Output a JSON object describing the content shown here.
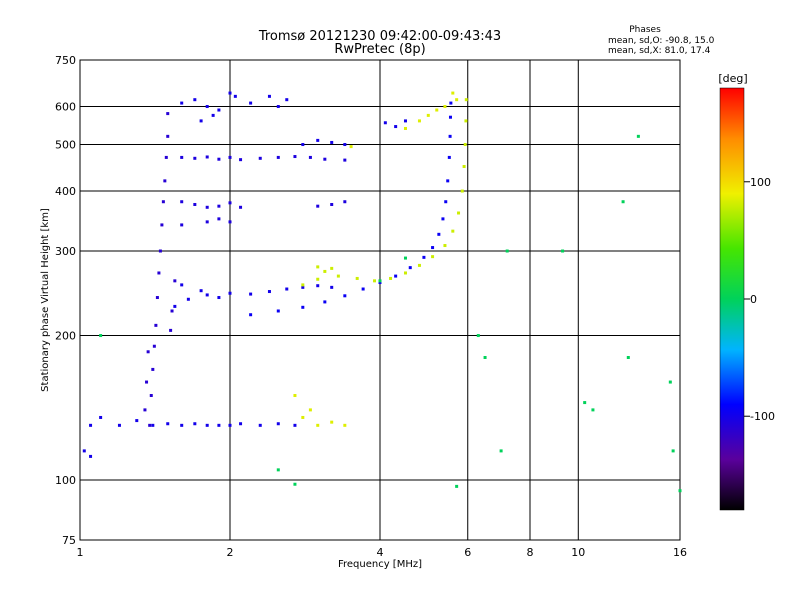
{
  "chart_data": {
    "type": "scatter",
    "title": "Tromsø 20121230 09:42:00-09:43:43",
    "subtitle": "RwPretec (8p)",
    "xlabel": "Frequency [MHz]",
    "ylabel": "Stationary phase Virtual Height [km]",
    "x_scale": "log",
    "y_scale": "log",
    "xlim": [
      1,
      16
    ],
    "ylim": [
      75,
      750
    ],
    "x_ticks": [
      1,
      2,
      4,
      6,
      8,
      10,
      16
    ],
    "x_tick_labels": [
      "1",
      "2",
      "4",
      "6",
      "8",
      "10",
      "16"
    ],
    "y_ticks": [
      75,
      100,
      200,
      300,
      400,
      500,
      600,
      750
    ],
    "y_tick_labels": [
      "75",
      "100",
      "200",
      "300",
      "400",
      "500",
      "600",
      "750"
    ],
    "grid": true,
    "annotation": {
      "title": "Phases",
      "line_o": "mean, sd,O: -90.8, 15.0",
      "line_x": "mean, sd,X:  81.0, 17.4"
    },
    "colorbar": {
      "label": "[deg]",
      "range": [
        -180,
        180
      ],
      "ticks": [
        100,
        0,
        -100
      ],
      "tick_labels": [
        "100",
        "0",
        "-100"
      ]
    },
    "series": [
      {
        "key": "o_trace_main",
        "phase": -95,
        "points": [
          [
            2.2,
            221
          ],
          [
            2.5,
            225
          ],
          [
            2.8,
            229
          ],
          [
            3.1,
            235
          ],
          [
            3.4,
            242
          ],
          [
            3.7,
            250
          ],
          [
            4.0,
            258
          ],
          [
            4.3,
            266
          ],
          [
            4.6,
            277
          ],
          [
            4.9,
            291
          ],
          [
            5.1,
            305
          ],
          [
            5.25,
            325
          ],
          [
            5.35,
            350
          ],
          [
            5.42,
            380
          ],
          [
            5.47,
            420
          ],
          [
            5.51,
            470
          ],
          [
            5.53,
            520
          ],
          [
            5.54,
            570
          ],
          [
            5.55,
            610
          ]
        ]
      },
      {
        "key": "o_trace_spread",
        "phase": -100,
        "points": [
          [
            1.55,
            230
          ],
          [
            1.65,
            238
          ],
          [
            1.8,
            243
          ],
          [
            2.0,
            245
          ],
          [
            2.2,
            244
          ],
          [
            2.4,
            247
          ],
          [
            2.6,
            250
          ],
          [
            2.8,
            252
          ],
          [
            3.0,
            254
          ],
          [
            3.2,
            252
          ],
          [
            1.6,
            255
          ],
          [
            1.75,
            248
          ],
          [
            1.9,
            240
          ]
        ]
      },
      {
        "key": "x_trace",
        "phase": 80,
        "points": [
          [
            2.8,
            255
          ],
          [
            3.0,
            262
          ],
          [
            3.3,
            266
          ],
          [
            3.6,
            263
          ],
          [
            3.9,
            260
          ],
          [
            4.2,
            263
          ],
          [
            4.5,
            270
          ],
          [
            4.8,
            280
          ],
          [
            5.1,
            292
          ],
          [
            5.4,
            308
          ],
          [
            5.6,
            330
          ],
          [
            5.75,
            360
          ],
          [
            5.85,
            400
          ],
          [
            5.9,
            450
          ],
          [
            5.93,
            500
          ],
          [
            5.95,
            560
          ],
          [
            5.96,
            620
          ],
          [
            3.0,
            278
          ],
          [
            3.1,
            272
          ],
          [
            3.2,
            276
          ]
        ]
      },
      {
        "key": "vertical_spread_lowfreq",
        "phase": -110,
        "points": [
          [
            1.38,
            130
          ],
          [
            1.39,
            150
          ],
          [
            1.4,
            170
          ],
          [
            1.41,
            190
          ],
          [
            1.42,
            210
          ],
          [
            1.43,
            240
          ],
          [
            1.44,
            270
          ],
          [
            1.45,
            300
          ],
          [
            1.46,
            340
          ],
          [
            1.47,
            380
          ],
          [
            1.48,
            420
          ],
          [
            1.49,
            470
          ],
          [
            1.5,
            520
          ],
          [
            1.5,
            580
          ],
          [
            1.35,
            140
          ],
          [
            1.36,
            160
          ],
          [
            1.37,
            185
          ],
          [
            1.52,
            205
          ],
          [
            1.53,
            225
          ],
          [
            1.55,
            260
          ]
        ]
      },
      {
        "key": "lower_e_band",
        "phase": -100,
        "points": [
          [
            1.05,
            130
          ],
          [
            1.1,
            135
          ],
          [
            1.2,
            130
          ],
          [
            1.3,
            133
          ],
          [
            1.4,
            130
          ],
          [
            1.5,
            131
          ],
          [
            1.6,
            130
          ],
          [
            1.7,
            131
          ],
          [
            1.8,
            130
          ],
          [
            1.9,
            130
          ],
          [
            2.0,
            130
          ],
          [
            2.1,
            131
          ],
          [
            2.3,
            130
          ],
          [
            2.5,
            131
          ],
          [
            2.7,
            130
          ],
          [
            1.02,
            115
          ],
          [
            1.05,
            112
          ]
        ]
      },
      {
        "key": "horizontal_echo_470",
        "phase": -105,
        "points": [
          [
            1.6,
            470
          ],
          [
            1.7,
            468
          ],
          [
            1.8,
            471
          ],
          [
            1.9,
            466
          ],
          [
            2.0,
            470
          ],
          [
            2.1,
            465
          ],
          [
            2.3,
            468
          ],
          [
            2.5,
            470
          ],
          [
            2.7,
            472
          ],
          [
            2.9,
            470
          ],
          [
            3.1,
            466
          ],
          [
            3.4,
            464
          ]
        ]
      },
      {
        "key": "horizontal_echo_380",
        "phase": -105,
        "points": [
          [
            1.6,
            380
          ],
          [
            1.7,
            375
          ],
          [
            1.8,
            370
          ],
          [
            1.9,
            372
          ],
          [
            2.0,
            378
          ],
          [
            2.1,
            370
          ],
          [
            3.0,
            372
          ],
          [
            3.2,
            375
          ],
          [
            3.4,
            380
          ],
          [
            1.6,
            340
          ],
          [
            1.8,
            345
          ],
          [
            1.9,
            350
          ],
          [
            2.0,
            345
          ]
        ]
      },
      {
        "key": "upper_scatter_600",
        "phase": -100,
        "points": [
          [
            1.6,
            610
          ],
          [
            1.7,
            620
          ],
          [
            1.8,
            600
          ],
          [
            1.9,
            590
          ],
          [
            2.0,
            640
          ],
          [
            2.05,
            630
          ],
          [
            2.2,
            610
          ],
          [
            2.4,
            630
          ],
          [
            2.5,
            600
          ],
          [
            2.6,
            620
          ],
          [
            1.75,
            560
          ],
          [
            1.85,
            575
          ],
          [
            3.4,
            500
          ],
          [
            3.2,
            505
          ],
          [
            3.0,
            510
          ],
          [
            2.8,
            500
          ],
          [
            4.1,
            555
          ],
          [
            4.3,
            545
          ],
          [
            4.5,
            560
          ]
        ]
      },
      {
        "key": "x_scatter_upper",
        "phase": 85,
        "points": [
          [
            4.5,
            540
          ],
          [
            4.8,
            560
          ],
          [
            5.0,
            575
          ],
          [
            5.2,
            590
          ],
          [
            5.4,
            600
          ],
          [
            5.6,
            640
          ],
          [
            5.7,
            620
          ],
          [
            3.5,
            495
          ],
          [
            3.0,
            130
          ],
          [
            3.2,
            132
          ],
          [
            3.4,
            130
          ],
          [
            2.8,
            135
          ],
          [
            2.9,
            140
          ],
          [
            2.7,
            150
          ]
        ]
      },
      {
        "key": "scattered_noise",
        "phase": 0,
        "points": [
          [
            1.1,
            200
          ],
          [
            6.5,
            180
          ],
          [
            7.0,
            115
          ],
          [
            9.3,
            300
          ],
          [
            10.3,
            145
          ],
          [
            10.7,
            140
          ],
          [
            12.6,
            180
          ],
          [
            13.2,
            520
          ],
          [
            15.3,
            160
          ],
          [
            15.5,
            115
          ],
          [
            16.0,
            95
          ],
          [
            6.3,
            200
          ],
          [
            7.2,
            300
          ],
          [
            2.5,
            105
          ],
          [
            2.7,
            98
          ],
          [
            5.7,
            97
          ],
          [
            12.3,
            380
          ],
          [
            4.0,
            260
          ],
          [
            4.5,
            290
          ]
        ]
      }
    ]
  }
}
